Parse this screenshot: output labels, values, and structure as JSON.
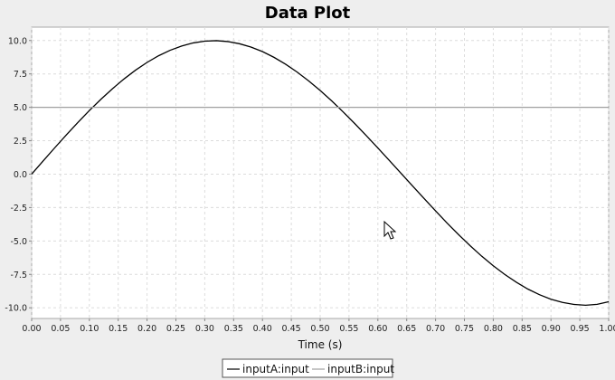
{
  "chart_data": {
    "type": "line",
    "title": "Data Plot",
    "xlabel": "Time (s)",
    "ylabel": "",
    "xlim": [
      0,
      1.0
    ],
    "ylim": [
      -10.8,
      11.0
    ],
    "grid": true,
    "legend_position": "bottom",
    "x_ticks": [
      "0.00",
      "0.05",
      "0.10",
      "0.15",
      "0.20",
      "0.25",
      "0.30",
      "0.35",
      "0.40",
      "0.45",
      "0.50",
      "0.55",
      "0.60",
      "0.65",
      "0.70",
      "0.75",
      "0.80",
      "0.85",
      "0.90",
      "0.95",
      "1.00"
    ],
    "y_ticks": [
      "10.0",
      "7.5",
      "5.0",
      "2.5",
      "0.0",
      "-2.5",
      "-5.0",
      "-7.5",
      "-10.0"
    ],
    "series": [
      {
        "name": "inputA:input",
        "color": "#000000",
        "x": [
          0,
          0.02,
          0.04,
          0.06,
          0.08,
          0.1,
          0.12,
          0.14,
          0.16,
          0.18,
          0.2,
          0.22,
          0.24,
          0.26,
          0.28,
          0.3,
          0.32,
          0.34,
          0.36,
          0.38,
          0.4,
          0.42,
          0.44,
          0.46,
          0.48,
          0.5,
          0.52,
          0.54,
          0.56,
          0.58,
          0.6,
          0.62,
          0.64,
          0.66,
          0.68,
          0.7,
          0.72,
          0.74,
          0.76,
          0.78,
          0.8,
          0.82,
          0.84,
          0.86,
          0.88,
          0.9,
          0.92,
          0.94,
          0.96,
          0.98,
          1.0
        ],
        "y": [
          0,
          0.99,
          1.97,
          2.93,
          3.86,
          4.76,
          5.6,
          6.39,
          7.12,
          7.78,
          8.36,
          8.86,
          9.27,
          9.59,
          9.82,
          9.95,
          9.99,
          9.92,
          9.76,
          9.51,
          9.17,
          8.74,
          8.23,
          7.64,
          6.98,
          6.26,
          5.48,
          4.65,
          3.78,
          2.88,
          1.96,
          1.02,
          0.07,
          -0.88,
          -1.82,
          -2.75,
          -3.66,
          -4.53,
          -5.36,
          -6.14,
          -6.86,
          -7.51,
          -8.09,
          -8.6,
          -9.02,
          -9.36,
          -9.6,
          -9.75,
          -9.81,
          -9.74,
          -9.55
        ]
      },
      {
        "name": "inputB:input",
        "color": "#a0a0a0",
        "x": [
          0,
          1.0
        ],
        "y": [
          5.0,
          5.0
        ]
      }
    ]
  }
}
